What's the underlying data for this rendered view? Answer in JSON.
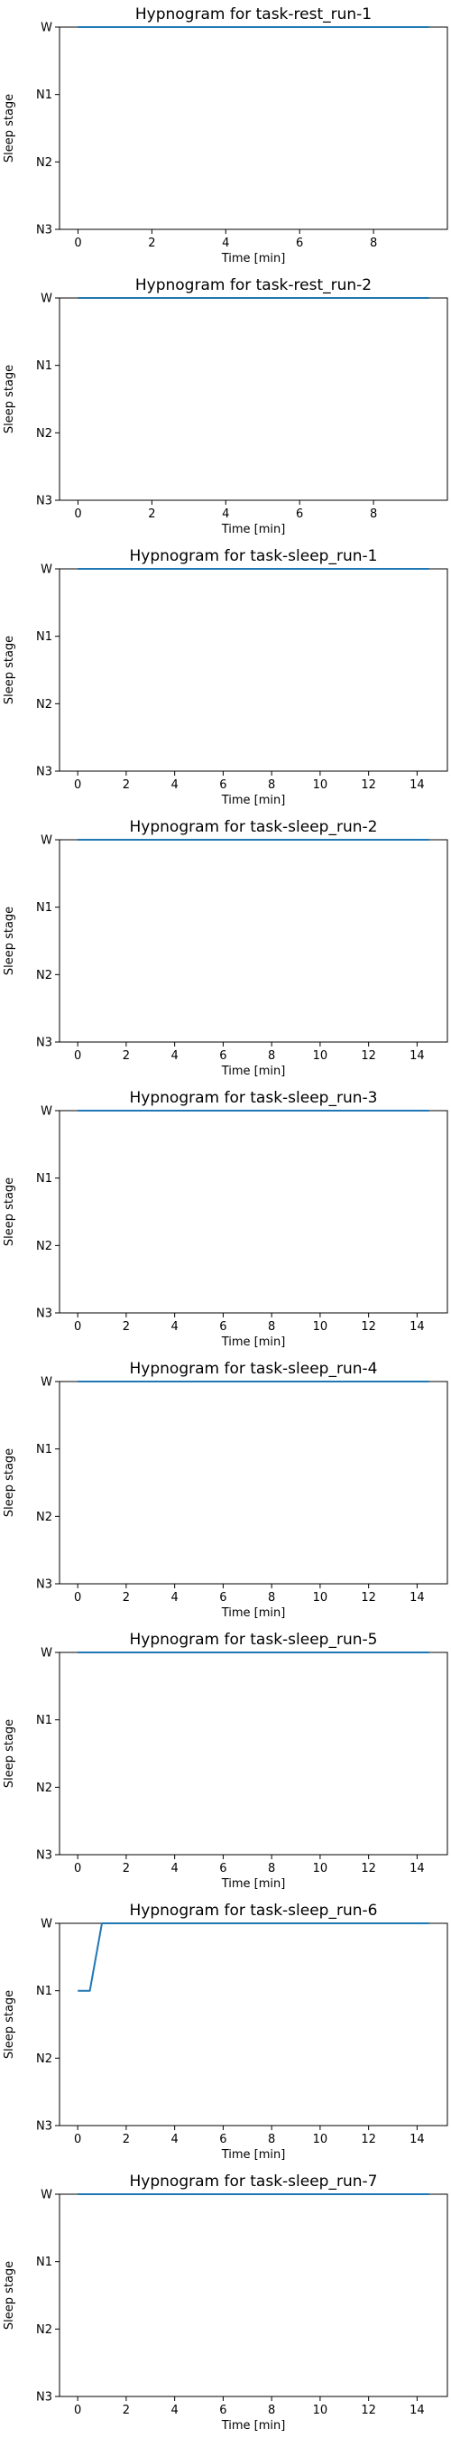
{
  "figure": {
    "background": "#ffffff",
    "line_color": "#1f77b4"
  },
  "chart_data": [
    {
      "type": "line",
      "title": "Hypnogram for task-rest_run-1",
      "xlabel": "Time [min]",
      "ylabel": "Sleep stage",
      "xlim": [
        -0.5,
        10.0
      ],
      "xticks": [
        0,
        2,
        4,
        6,
        8
      ],
      "yticks": [
        "W",
        "N1",
        "N2",
        "N3"
      ],
      "x": [
        0,
        9.5
      ],
      "y": [
        "W",
        "W"
      ],
      "grid": false
    },
    {
      "type": "line",
      "title": "Hypnogram for task-rest_run-2",
      "xlabel": "Time [min]",
      "ylabel": "Sleep stage",
      "xlim": [
        -0.5,
        10.0
      ],
      "xticks": [
        0,
        2,
        4,
        6,
        8
      ],
      "yticks": [
        "W",
        "N1",
        "N2",
        "N3"
      ],
      "x": [
        0,
        9.5
      ],
      "y": [
        "W",
        "W"
      ],
      "grid": false
    },
    {
      "type": "line",
      "title": "Hypnogram for task-sleep_run-1",
      "xlabel": "Time [min]",
      "ylabel": "Sleep stage",
      "xlim": [
        -0.75,
        15.25
      ],
      "xticks": [
        0,
        2,
        4,
        6,
        8,
        10,
        12,
        14
      ],
      "yticks": [
        "W",
        "N1",
        "N2",
        "N3"
      ],
      "x": [
        0,
        14.5
      ],
      "y": [
        "W",
        "W"
      ],
      "grid": false
    },
    {
      "type": "line",
      "title": "Hypnogram for task-sleep_run-2",
      "xlabel": "Time [min]",
      "ylabel": "Sleep stage",
      "xlim": [
        -0.75,
        15.25
      ],
      "xticks": [
        0,
        2,
        4,
        6,
        8,
        10,
        12,
        14
      ],
      "yticks": [
        "W",
        "N1",
        "N2",
        "N3"
      ],
      "x": [
        0,
        14.5
      ],
      "y": [
        "W",
        "W"
      ],
      "grid": false
    },
    {
      "type": "line",
      "title": "Hypnogram for task-sleep_run-3",
      "xlabel": "Time [min]",
      "ylabel": "Sleep stage",
      "xlim": [
        -0.75,
        15.25
      ],
      "xticks": [
        0,
        2,
        4,
        6,
        8,
        10,
        12,
        14
      ],
      "yticks": [
        "W",
        "N1",
        "N2",
        "N3"
      ],
      "x": [
        0,
        14.5
      ],
      "y": [
        "W",
        "W"
      ],
      "grid": false
    },
    {
      "type": "line",
      "title": "Hypnogram for task-sleep_run-4",
      "xlabel": "Time [min]",
      "ylabel": "Sleep stage",
      "xlim": [
        -0.75,
        15.25
      ],
      "xticks": [
        0,
        2,
        4,
        6,
        8,
        10,
        12,
        14
      ],
      "yticks": [
        "W",
        "N1",
        "N2",
        "N3"
      ],
      "x": [
        0,
        14.5
      ],
      "y": [
        "W",
        "W"
      ],
      "grid": false
    },
    {
      "type": "line",
      "title": "Hypnogram for task-sleep_run-5",
      "xlabel": "Time [min]",
      "ylabel": "Sleep stage",
      "xlim": [
        -0.75,
        15.25
      ],
      "xticks": [
        0,
        2,
        4,
        6,
        8,
        10,
        12,
        14
      ],
      "yticks": [
        "W",
        "N1",
        "N2",
        "N3"
      ],
      "x": [
        0,
        14.5
      ],
      "y": [
        "W",
        "W"
      ],
      "grid": false
    },
    {
      "type": "line",
      "title": "Hypnogram for task-sleep_run-6",
      "xlabel": "Time [min]",
      "ylabel": "Sleep stage",
      "xlim": [
        -0.75,
        15.25
      ],
      "xticks": [
        0,
        2,
        4,
        6,
        8,
        10,
        12,
        14
      ],
      "yticks": [
        "W",
        "N1",
        "N2",
        "N3"
      ],
      "x": [
        0,
        0.5,
        1.0,
        14.5
      ],
      "y": [
        "N1",
        "N1",
        "W",
        "W"
      ],
      "grid": false
    },
    {
      "type": "line",
      "title": "Hypnogram for task-sleep_run-7",
      "xlabel": "Time [min]",
      "ylabel": "Sleep stage",
      "xlim": [
        -0.75,
        15.25
      ],
      "xticks": [
        0,
        2,
        4,
        6,
        8,
        10,
        12,
        14
      ],
      "yticks": [
        "W",
        "N1",
        "N2",
        "N3"
      ],
      "x": [
        0,
        14.5
      ],
      "y": [
        "W",
        "W"
      ],
      "grid": false
    }
  ]
}
